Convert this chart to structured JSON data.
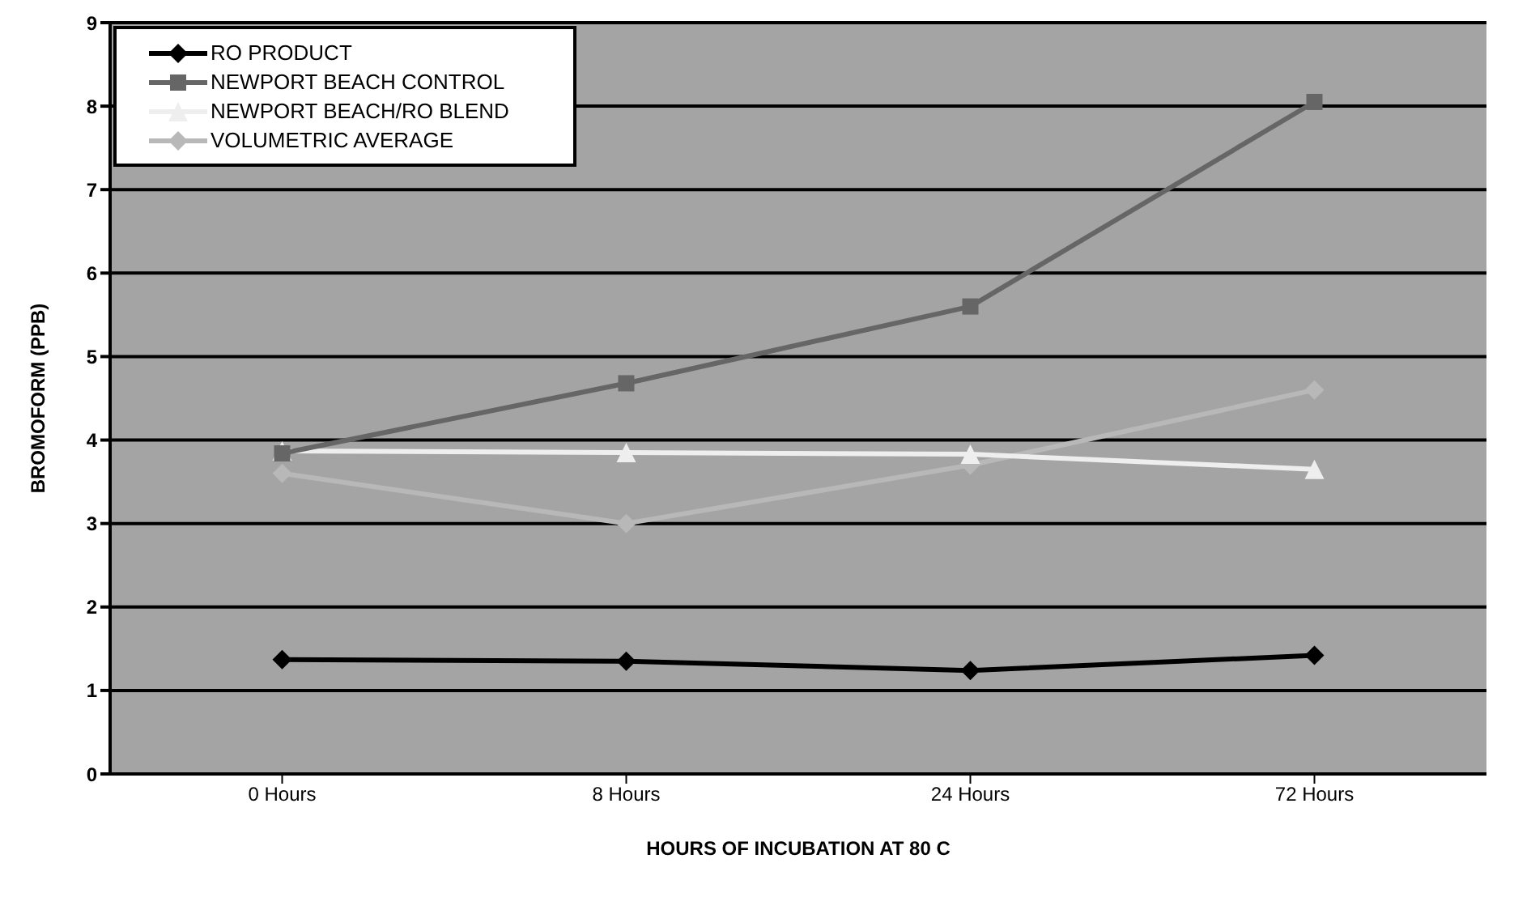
{
  "chart_data": {
    "type": "line",
    "xlabel": "HOURS OF INCUBATION AT 80 C",
    "ylabel": "BROMOFORM (PPB)",
    "categories": [
      "0 Hours",
      "8 Hours",
      "24 Hours",
      "72 Hours"
    ],
    "series": [
      {
        "name": "RO PRODUCT",
        "color": "#000000",
        "marker": "diamond",
        "values": [
          1.37,
          1.35,
          1.24,
          1.42
        ]
      },
      {
        "name": "NEWPORT BEACH CONTROL",
        "color": "#666666",
        "marker": "square",
        "values": [
          3.84,
          4.68,
          5.6,
          8.05
        ]
      },
      {
        "name": "NEWPORT BEACH/RO BLEND",
        "color": "#eeeeee",
        "marker": "triangle",
        "values": [
          3.87,
          3.85,
          3.83,
          3.65
        ]
      },
      {
        "name": "VOLUMETRIC AVERAGE",
        "color": "#b8b8b8",
        "marker": "diamond",
        "values": [
          3.6,
          3.0,
          3.7,
          4.6
        ]
      }
    ],
    "ylim": [
      0,
      9
    ],
    "yticks": [
      0,
      1,
      2,
      3,
      4,
      5,
      6,
      7,
      8,
      9
    ],
    "grid": "y",
    "legend": "top left"
  }
}
